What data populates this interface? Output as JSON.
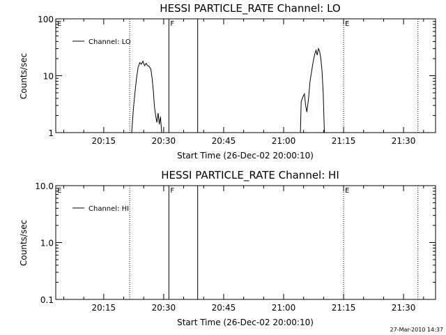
{
  "footer": {
    "timestamp": "27-Mar-2010 14:37"
  },
  "chart_data": [
    {
      "type": "line",
      "title": "HESSI PARTICLE_RATE Channel: LO",
      "xlabel": "Start Time (26-Dec-02 20:00:10)",
      "ylabel": "Counts/sec",
      "y_scale": "log",
      "xlim_minutes": [
        3,
        40
      ],
      "ylim": [
        1,
        100
      ],
      "x_ticks": [
        {
          "label": "20:15",
          "minute": 15
        },
        {
          "label": "20:30",
          "minute": 30
        },
        {
          "label": "20:45",
          "minute": 45
        },
        {
          "label": "21:00",
          "minute": 60
        },
        {
          "label": "21:15",
          "minute": 75
        },
        {
          "label": "21:30",
          "minute": 90
        }
      ],
      "y_ticks": [
        {
          "label": "1",
          "value": 1
        },
        {
          "label": "10",
          "value": 10
        },
        {
          "label": "100",
          "value": 100
        }
      ],
      "legend": {
        "position": "top-left",
        "label": "Channel: LO"
      },
      "markers": [
        {
          "minute": 3,
          "style": "dotted",
          "label": "E"
        },
        {
          "minute": 21.5,
          "style": "dotted",
          "label": ""
        },
        {
          "minute": 31.3,
          "style": "solid",
          "label": "F"
        },
        {
          "minute": 38.5,
          "style": "solid",
          "label": ""
        },
        {
          "minute": 75,
          "style": "dotted",
          "label": "E"
        },
        {
          "minute": 93.6,
          "style": "dotted",
          "label": ""
        }
      ],
      "series": [
        {
          "name": "Channel: LO",
          "segments": [
            [
              [
                22.0,
                1.0
              ],
              [
                22.4,
                2.5
              ],
              [
                22.8,
                5.0
              ],
              [
                23.2,
                9.0
              ],
              [
                23.6,
                14.0
              ],
              [
                24.0,
                17.0
              ],
              [
                24.4,
                16.0
              ],
              [
                24.8,
                18.0
              ],
              [
                25.2,
                15.0
              ],
              [
                25.6,
                16.5
              ],
              [
                26.0,
                15.0
              ],
              [
                26.4,
                14.5
              ],
              [
                26.8,
                13.0
              ],
              [
                27.1,
                9.0
              ],
              [
                27.4,
                5.5
              ],
              [
                27.7,
                2.8
              ],
              [
                28.0,
                2.0
              ],
              [
                28.3,
                1.5
              ],
              [
                28.6,
                2.2
              ],
              [
                28.9,
                1.4
              ],
              [
                29.2,
                1.9
              ],
              [
                29.5,
                1.0
              ]
            ],
            [
              [
                64.2,
                1.0
              ],
              [
                64.4,
                3.5
              ],
              [
                64.8,
                4.2
              ],
              [
                65.2,
                4.8
              ],
              [
                65.5,
                3.0
              ],
              [
                65.8,
                2.3
              ],
              [
                66.2,
                3.8
              ],
              [
                66.6,
                8.0
              ],
              [
                67.0,
                12.0
              ],
              [
                67.4,
                18.0
              ],
              [
                67.8,
                24.0
              ],
              [
                68.1,
                28.0
              ],
              [
                68.4,
                23.0
              ],
              [
                68.7,
                30.0
              ],
              [
                69.0,
                27.0
              ],
              [
                69.3,
                20.0
              ],
              [
                69.6,
                12.0
              ],
              [
                69.9,
                5.0
              ],
              [
                70.2,
                1.0
              ]
            ]
          ]
        }
      ]
    },
    {
      "type": "line",
      "title": "HESSI PARTICLE_RATE Channel: HI",
      "xlabel": "Start Time (26-Dec-02 20:00:10)",
      "ylabel": "Counts/sec",
      "y_scale": "log",
      "xlim_minutes": [
        3,
        40
      ],
      "ylim": [
        0.1,
        10
      ],
      "x_ticks": [
        {
          "label": "20:15",
          "minute": 15
        },
        {
          "label": "20:30",
          "minute": 30
        },
        {
          "label": "20:45",
          "minute": 45
        },
        {
          "label": "21:00",
          "minute": 60
        },
        {
          "label": "21:15",
          "minute": 75
        },
        {
          "label": "21:30",
          "minute": 90
        }
      ],
      "y_ticks": [
        {
          "label": "0.1",
          "value": 0.1
        },
        {
          "label": "1.0",
          "value": 1
        },
        {
          "label": "10.0",
          "value": 10
        }
      ],
      "legend": {
        "position": "top-left",
        "label": "Channel: HI"
      },
      "markers": [
        {
          "minute": 3,
          "style": "dotted",
          "label": "E"
        },
        {
          "minute": 21.5,
          "style": "dotted",
          "label": ""
        },
        {
          "minute": 31.3,
          "style": "solid",
          "label": "F"
        },
        {
          "minute": 38.5,
          "style": "solid",
          "label": ""
        },
        {
          "minute": 75,
          "style": "dotted",
          "label": "E"
        },
        {
          "minute": 93.6,
          "style": "dotted",
          "label": ""
        }
      ],
      "series": [
        {
          "name": "Channel: HI",
          "segments": []
        }
      ]
    }
  ]
}
